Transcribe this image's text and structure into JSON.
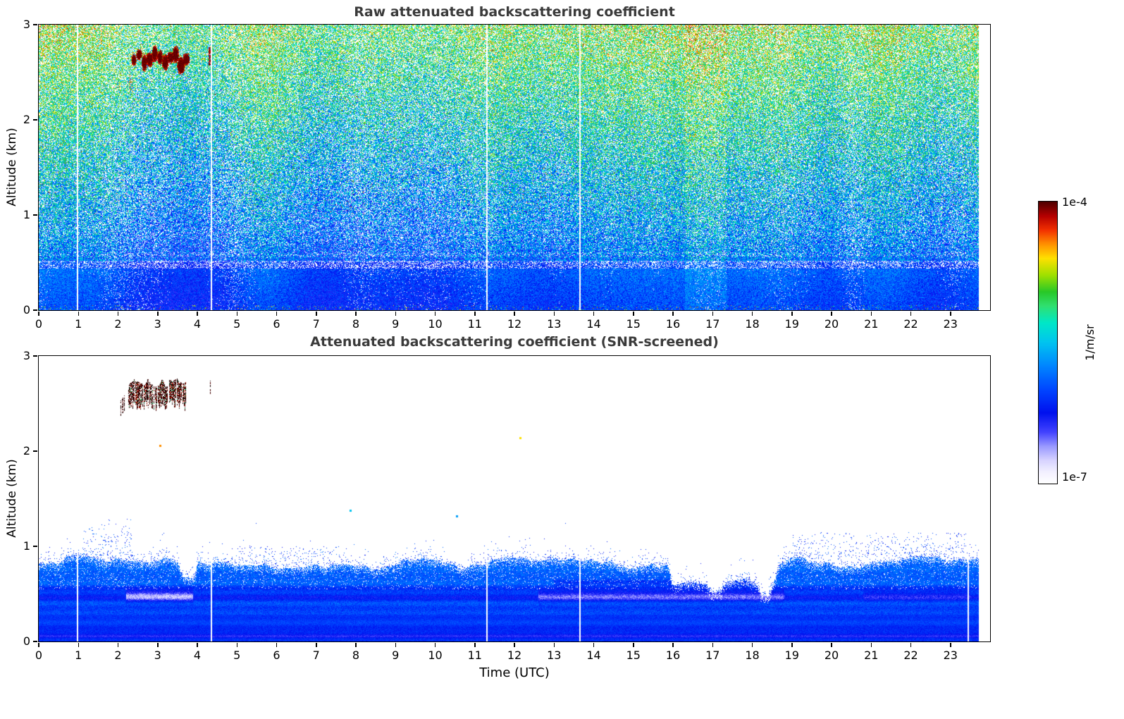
{
  "colorbar": {
    "label": "1/m/sr",
    "tick_top": "1e-4",
    "tick_bottom": "1e-7",
    "scale": "log",
    "stops": [
      [
        0,
        "#ffffff"
      ],
      [
        0.04,
        "#f2f0ff"
      ],
      [
        0.08,
        "#d8d4ff"
      ],
      [
        0.13,
        "#9b9bff"
      ],
      [
        0.18,
        "#4444ff"
      ],
      [
        0.25,
        "#0011ee"
      ],
      [
        0.33,
        "#0044ff"
      ],
      [
        0.42,
        "#0088ff"
      ],
      [
        0.5,
        "#00c4f0"
      ],
      [
        0.57,
        "#00e8c8"
      ],
      [
        0.63,
        "#30e070"
      ],
      [
        0.68,
        "#28c828"
      ],
      [
        0.74,
        "#a0e000"
      ],
      [
        0.8,
        "#ffe000"
      ],
      [
        0.85,
        "#ff9000"
      ],
      [
        0.9,
        "#f23000"
      ],
      [
        0.95,
        "#b40000"
      ],
      [
        1,
        "#500000"
      ]
    ]
  },
  "chart_data": [
    {
      "type": "heatmap",
      "title": "Raw attenuated backscattering coefficient",
      "xlabel": "",
      "ylabel": "Altitude (km)",
      "xlim": [
        0,
        24
      ],
      "ylim": [
        0,
        3
      ],
      "x_ticks": [
        "0",
        "1",
        "2",
        "3",
        "4",
        "5",
        "6",
        "7",
        "8",
        "9",
        "10",
        "11",
        "12",
        "13",
        "14",
        "15",
        "16",
        "17",
        "18",
        "19",
        "20",
        "21",
        "22",
        "23"
      ],
      "y_ticks": [
        "0",
        "1",
        "2",
        "3"
      ],
      "value_units": "1/m/sr",
      "value_min": "1e-7",
      "value_max": "1e-4",
      "grid": false,
      "legend": false,
      "features": {
        "summary": "Dense raw lidar noise speckle (blue/cyan/green, occasional yellow-red) over the whole domain; saturated blue aerosol layer below ~0.8 km; whitish speckle band near 0.47 km; dark-red cloud layer near 2.6 km between ~02:20 and ~03:45 UTC with thin remnant at ~04:20; faint vertical data-gap lines.",
        "cloud_layer": {
          "t_start": 2.3,
          "t_end": 3.72,
          "alt_min": 2.42,
          "alt_max": 2.78
        },
        "cloud_dash": {
          "t": 4.31,
          "alt_min": 2.57,
          "alt_max": 2.76
        },
        "data_gaps_t": [
          0.97,
          4.35,
          11.3,
          13.65
        ],
        "data_end_t": 23.72,
        "light_band_alt": [
          0.44,
          0.52
        ],
        "surface_layer_top_km": 0.8
      }
    },
    {
      "type": "heatmap",
      "title": "Attenuated backscattering coefficient (SNR-screened)",
      "xlabel": "Time (UTC)",
      "ylabel": "Altitude (km)",
      "xlim": [
        0,
        24
      ],
      "ylim": [
        0,
        3
      ],
      "x_ticks": [
        "0",
        "1",
        "2",
        "3",
        "4",
        "5",
        "6",
        "7",
        "8",
        "9",
        "10",
        "11",
        "12",
        "13",
        "14",
        "15",
        "16",
        "17",
        "18",
        "19",
        "20",
        "21",
        "22",
        "23"
      ],
      "y_ticks": [
        "0",
        "1",
        "2",
        "3"
      ],
      "value_units": "1/m/sr",
      "value_min": "1e-7",
      "value_max": "1e-4",
      "grid": false,
      "legend": false,
      "features": {
        "summary": "Noise-screened field: white above the boundary layer (~0.85 km) except dark cloud fragments near 2.6 km (02:00-03:45 and 04:20 UTC); solid blue boundary layer with a light band near 0.48 km; layer top dips to ~0.5-0.6 km between 16:00 and 18:40 UTC; sparse blue speckle above the layer top.",
        "boundary_layer_top_km": 0.85,
        "bl_dips": [
          {
            "t_start": 3.5,
            "t_end": 4.05,
            "top": 0.66
          },
          {
            "t_start": 15.85,
            "t_end": 18.7,
            "top": 0.62
          },
          {
            "t_start": 16.85,
            "t_end": 17.35,
            "top": 0.5
          },
          {
            "t_start": 18.1,
            "t_end": 18.55,
            "top": 0.47
          }
        ],
        "light_band": {
          "alt_center": 0.48,
          "ranges": [
            [
              2.2,
              3.9,
              0.22
            ],
            [
              12.6,
              18.8,
              0.16
            ],
            [
              20.8,
              23.5,
              0.1
            ]
          ]
        },
        "speckle_clusters": [
          [
            1.1,
            2.35,
            1.3
          ],
          [
            5.0,
            7.6,
            1.0
          ],
          [
            19.0,
            23.4,
            1.15
          ]
        ],
        "cloud_layer": {
          "t_start": 2.28,
          "t_end": 3.72,
          "alt_min": 2.5,
          "alt_max": 2.76
        },
        "cloud_tail": {
          "t_start": 2.02,
          "t_end": 2.3,
          "alt_min": 2.36,
          "alt_max": 2.6
        },
        "cloud_dash": {
          "t": 4.33,
          "alt_min": 2.6,
          "alt_max": 2.74
        },
        "specks": [
          {
            "t": 3.06,
            "alt": 2.06,
            "v": 0.85
          },
          {
            "t": 12.15,
            "alt": 2.14,
            "v": 0.8
          },
          {
            "t": 7.85,
            "alt": 1.38,
            "v": 0.5
          },
          {
            "t": 10.55,
            "alt": 1.32,
            "v": 0.45
          }
        ],
        "data_gaps_t": [
          0.97,
          4.35,
          11.3,
          13.65,
          23.45
        ],
        "data_end_t": 23.72
      }
    }
  ]
}
